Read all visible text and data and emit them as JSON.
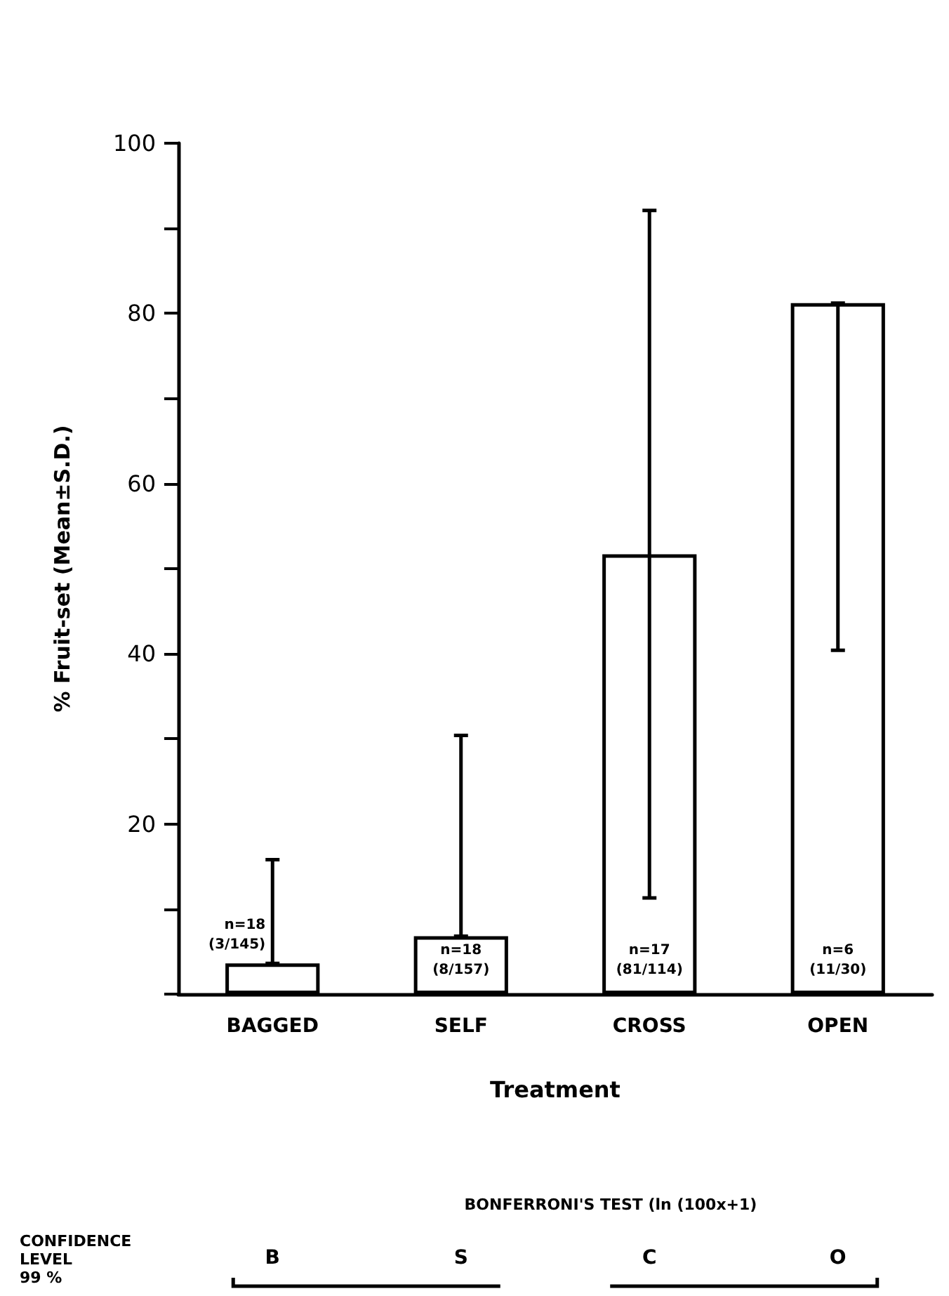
{
  "chart_data": {
    "type": "bar",
    "categories": [
      "BAGGED",
      "SELF",
      "CROSS",
      "OPEN"
    ],
    "values": [
      3.6,
      6.8,
      51.7,
      81.2
    ],
    "errors": [
      [
        3.6,
        15.8
      ],
      [
        6.8,
        30.4
      ],
      [
        11.3,
        92.1
      ],
      [
        40.4,
        81.2
      ]
    ],
    "color": "#ffffff",
    "ylim": [
      0,
      100
    ],
    "yticks": [
      {
        "value": 0,
        "label": null
      },
      {
        "value": 10,
        "label": null
      },
      20,
      {
        "value": 30,
        "label": null
      },
      40,
      {
        "value": 50,
        "label": null
      },
      60,
      {
        "value": 70,
        "label": null
      },
      80,
      {
        "value": 90,
        "label": null
      },
      100
    ],
    "xlabel": "Treatment",
    "ylabel": "% Fruit-set (Mean±S.D.)",
    "grid": false,
    "annotations": [
      "n=18\n(3/145)",
      "n=18\n(8/157)",
      "n=17\n(81/114)",
      "n=6\n(11/30)",
      "BONFERRONI'S TEST (ln (100x+1)",
      "CONFIDENCE\nLEVEL\n99 %",
      "B",
      "S",
      "C",
      "O"
    ]
  }
}
